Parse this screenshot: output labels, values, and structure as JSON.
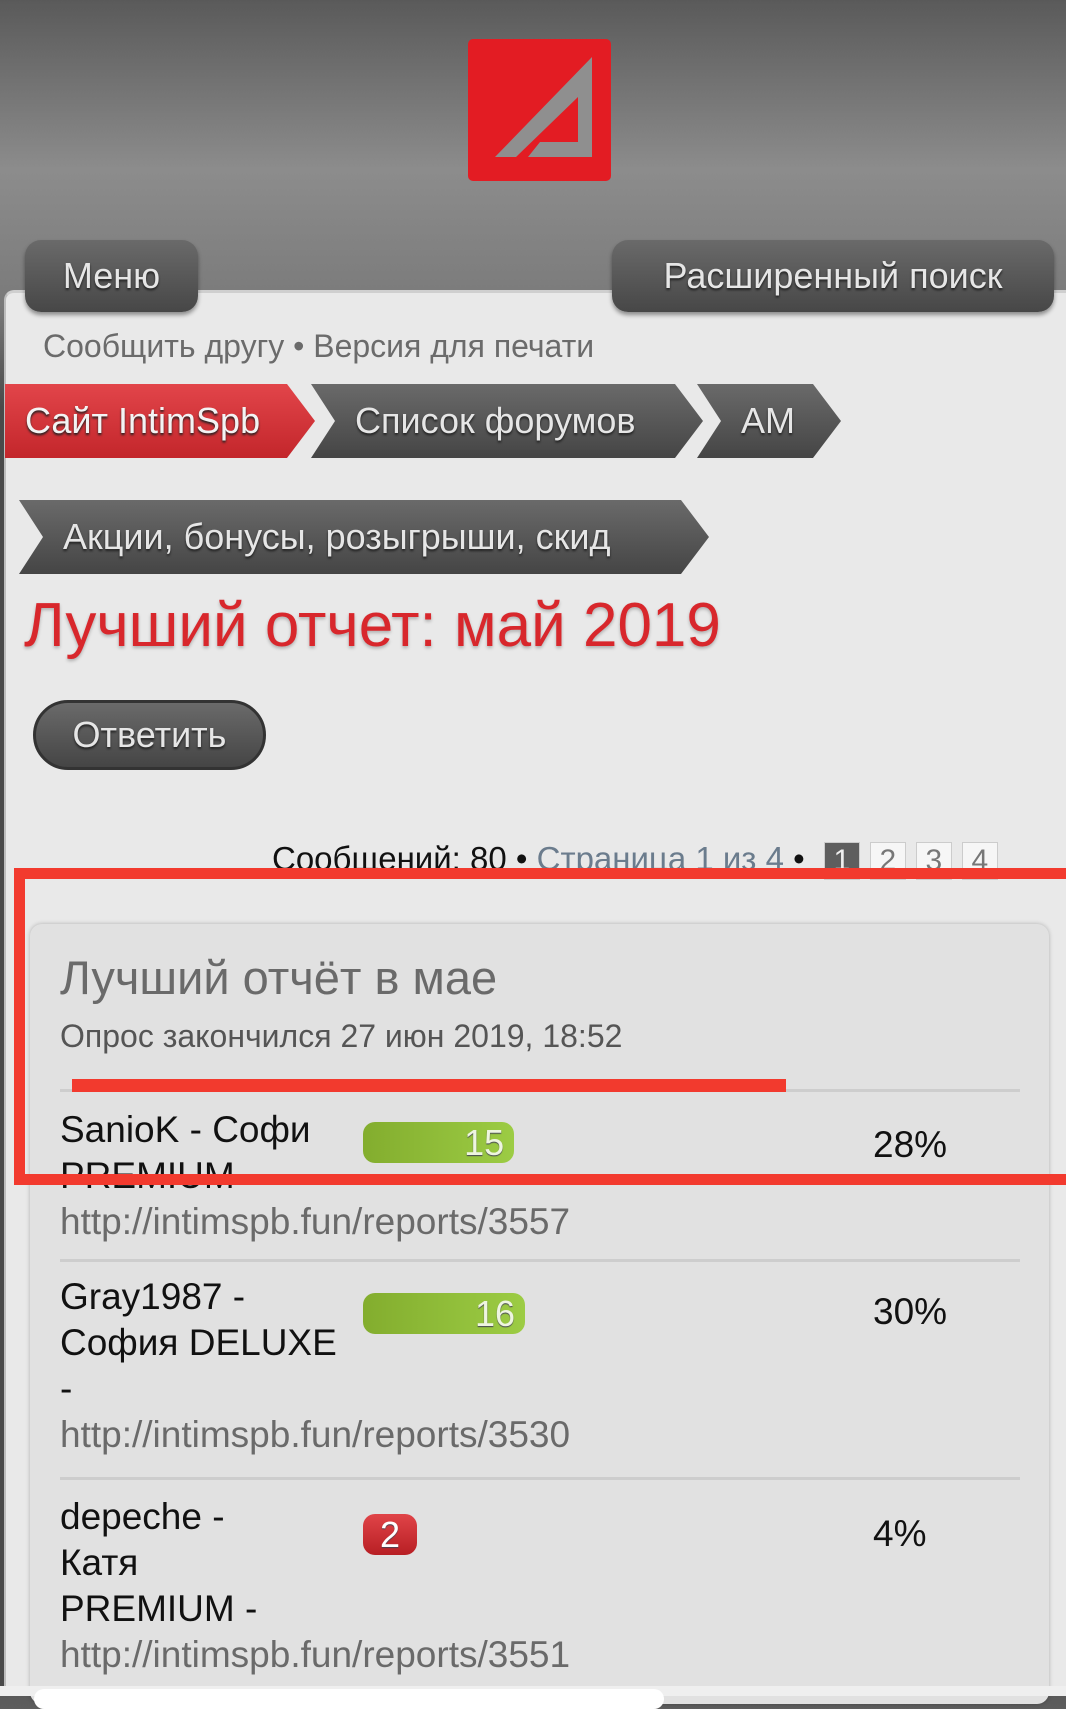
{
  "header": {
    "logo": "A",
    "menu_label": "Меню",
    "search_label": "Расширенный поиск"
  },
  "links": {
    "tell_friend": "Сообщить другу",
    "separator": "•",
    "print": "Версия для печати"
  },
  "breadcrumbs": [
    "Сайт IntimSpb",
    "Список форумов",
    "АМ",
    "Акции, бонусы, розыгрыши, скид"
  ],
  "topic": {
    "title": "Лучший отчет: май 2019",
    "reply_label": "Ответить"
  },
  "pagination": {
    "count": "Сообщений: 80",
    "sep": "•",
    "page_info": "Страница 1 из 4",
    "sep2": "•",
    "pages": [
      "1",
      "2",
      "3",
      "4"
    ],
    "current": "1"
  },
  "poll": {
    "title": "Лучший отчёт в мае",
    "subtitle": "Опрос закончился 27 июн 2019, 18:52",
    "options": [
      {
        "name": "SanioK - Софи PREMIUM -",
        "url": "http://intimspb.fun/reports/3557",
        "votes": "15",
        "percent": "28%",
        "pct_value": 28,
        "color": "green"
      },
      {
        "name": "Gray1987 - София DELUXE -",
        "url": "http://intimspb.fun/reports/3530",
        "votes": "16",
        "percent": "30%",
        "pct_value": 30,
        "color": "green"
      },
      {
        "name": "depeche - Катя PREMIUM -",
        "url": "http://intimspb.fun/reports/3551",
        "votes": "2",
        "percent": "4%",
        "pct_value": 4,
        "color": "red"
      }
    ]
  },
  "colors": {
    "accent": "#d8272c",
    "annotation": "#f23a2e",
    "bar_green": "#9ccc44",
    "bar_red": "#c3262b"
  }
}
